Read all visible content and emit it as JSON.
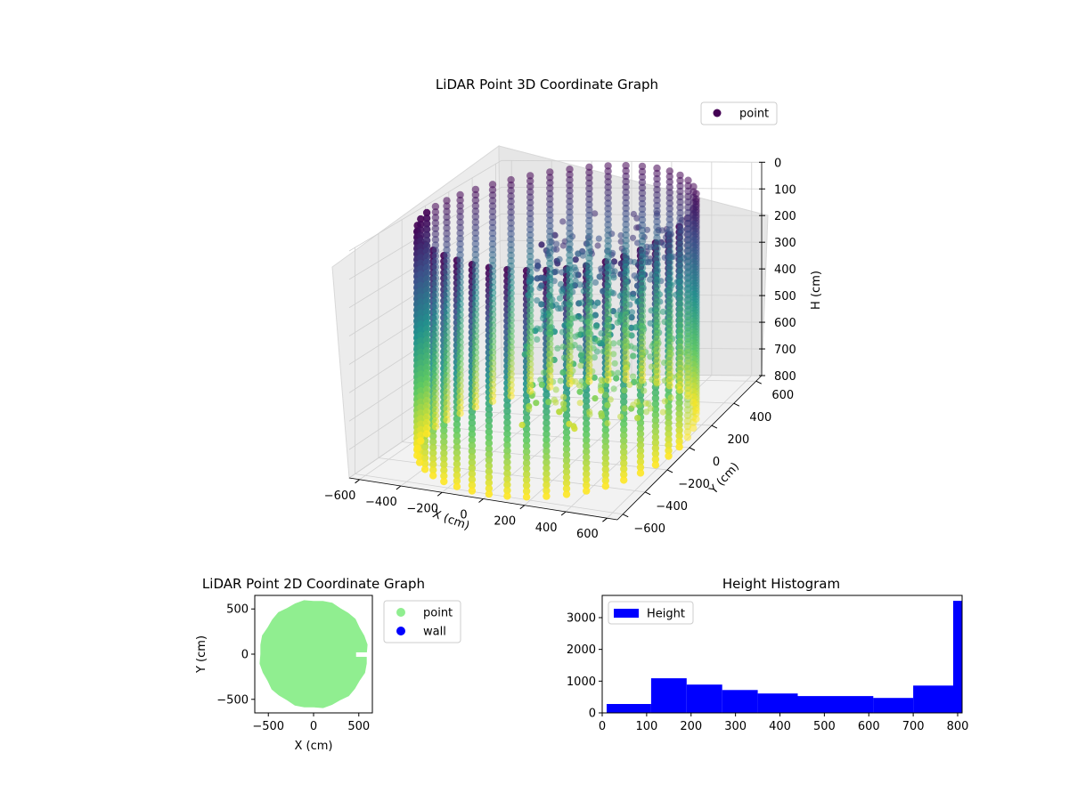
{
  "chart_data": [
    {
      "type": "scatter3d",
      "title": "LiDAR Point 3D Coordinate Graph",
      "xlabel": "X (cm)",
      "ylabel": "Y (cm)",
      "zlabel": "H (cm)",
      "xlim": [
        -650,
        650
      ],
      "ylim": [
        -650,
        650
      ],
      "zlim": [
        0,
        800
      ],
      "z_inverted": true,
      "x_ticks": [
        -600,
        -400,
        -200,
        0,
        200,
        400,
        600
      ],
      "y_ticks": [
        -600,
        -400,
        -200,
        0,
        200,
        400,
        600
      ],
      "z_ticks": [
        0,
        100,
        200,
        300,
        400,
        500,
        600,
        700,
        800
      ],
      "colormap": "viridis",
      "colormap_stops": [
        "#440154",
        "#3b528b",
        "#21918c",
        "#5ec962",
        "#fde725"
      ],
      "legend": [
        {
          "label": "point",
          "color": "#440154",
          "marker": "circle"
        }
      ],
      "legend_position": "upper-right",
      "grid": true,
      "structure": {
        "shape": "cylinder",
        "radius": 600,
        "height_range": [
          0,
          800
        ],
        "columns": 44
      }
    },
    {
      "type": "scatter",
      "title": "LiDAR Point 2D Coordinate Graph",
      "xlabel": "X (cm)",
      "ylabel": "Y (cm)",
      "xlim": [
        -650,
        650
      ],
      "ylim": [
        -650,
        650
      ],
      "x_ticks": [
        -500,
        0,
        500
      ],
      "y_ticks": [
        -500,
        0,
        500
      ],
      "series": [
        {
          "name": "point",
          "color": "#90ee90",
          "shape": "disk",
          "radius": 600
        },
        {
          "name": "wall",
          "color": "#0000ff",
          "shape": "points",
          "values": []
        }
      ],
      "legend_position": "outside-right"
    },
    {
      "type": "bar",
      "title": "Height Histogram",
      "xlabel": "",
      "ylabel": "",
      "xlim": [
        0,
        810
      ],
      "ylim": [
        0,
        3700
      ],
      "x_ticks": [
        0,
        100,
        200,
        300,
        400,
        500,
        600,
        700,
        800
      ],
      "y_ticks": [
        0,
        1000,
        2000,
        3000
      ],
      "bar_color": "#0000ff",
      "bins": [
        {
          "start": 10,
          "end": 110,
          "value": 280
        },
        {
          "start": 110,
          "end": 190,
          "value": 1090
        },
        {
          "start": 190,
          "end": 270,
          "value": 890
        },
        {
          "start": 270,
          "end": 350,
          "value": 720
        },
        {
          "start": 350,
          "end": 440,
          "value": 610
        },
        {
          "start": 440,
          "end": 610,
          "value": 530
        },
        {
          "start": 610,
          "end": 700,
          "value": 470
        },
        {
          "start": 700,
          "end": 790,
          "value": 860
        },
        {
          "start": 790,
          "end": 810,
          "value": 3530
        }
      ],
      "legend": [
        {
          "label": "Height",
          "color": "#0000ff"
        }
      ],
      "legend_position": "upper-left"
    }
  ]
}
